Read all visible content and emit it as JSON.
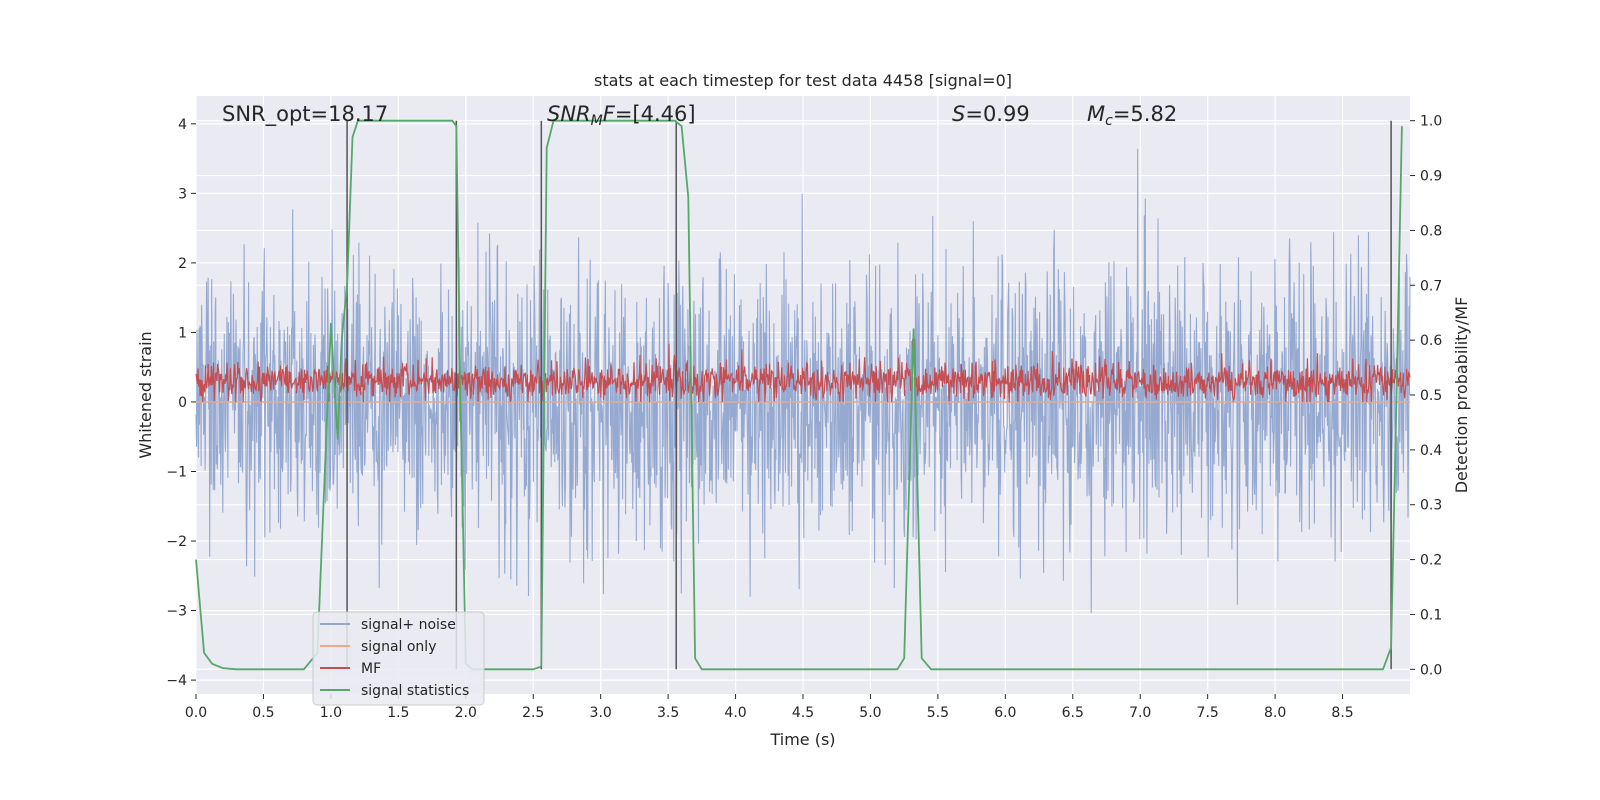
{
  "chart_data": {
    "type": "line",
    "title": "stats at each timestep for test data 4458 [signal=0]",
    "xlabel": "Time (s)",
    "ylabel": "Whitened strain",
    "ylabel_right": "Detection probability/MF",
    "xlim": [
      0,
      9.0
    ],
    "ylim": [
      -4.2,
      4.4
    ],
    "ylim_right": [
      -0.045,
      1.045
    ],
    "x_ticks": [
      0.0,
      0.5,
      1.0,
      1.5,
      2.0,
      2.5,
      3.0,
      3.5,
      4.0,
      4.5,
      5.0,
      5.5,
      6.0,
      6.5,
      7.0,
      7.5,
      8.0,
      8.5
    ],
    "x_tick_labels": [
      "0.0",
      "0.5",
      "1.0",
      "1.5",
      "2.0",
      "2.5",
      "3.0",
      "3.5",
      "4.0",
      "4.5",
      "5.0",
      "5.5",
      "6.0",
      "6.5",
      "7.0",
      "7.5",
      "8.0",
      "8.5"
    ],
    "y_ticks": [
      -4,
      -3,
      -2,
      -1,
      0,
      1,
      2,
      3,
      4
    ],
    "y_tick_labels": [
      "−4",
      "−3",
      "−2",
      "−1",
      "0",
      "1",
      "2",
      "3",
      "4"
    ],
    "y_right_ticks": [
      0.0,
      0.1,
      0.2,
      0.3,
      0.4,
      0.5,
      0.6,
      0.7,
      0.8,
      0.9,
      1.0
    ],
    "y_right_tick_labels": [
      "0.0",
      "0.1",
      "0.2",
      "0.3",
      "0.4",
      "0.5",
      "0.6",
      "0.7",
      "0.8",
      "0.9",
      "1.0"
    ],
    "grid": true,
    "legend_position": "lower-left",
    "annotations": {
      "snr_opt": "SNR_opt=18.17",
      "snr_mf_var": "SNR",
      "snr_mf_sub": "M",
      "snr_mf_var2": "F",
      "snr_mf_val": "=[4.46]",
      "s_var": "S",
      "s_val": "=0.99",
      "mc_var": "M",
      "mc_sub": "c",
      "mc_val": "=5.82"
    },
    "series": [
      {
        "name": "signal+ noise",
        "axis": "left",
        "color": "#91a7cf",
        "description_stats": {
          "mean": 0.0,
          "std": 1.0,
          "min": -3.8,
          "max": 4.0
        },
        "envelope_upper": [
          [
            0.0,
            2.9
          ],
          [
            0.5,
            2.5
          ],
          [
            1.0,
            2.6
          ],
          [
            1.5,
            3.0
          ],
          [
            2.0,
            2.6
          ],
          [
            2.5,
            2.4
          ],
          [
            3.0,
            2.5
          ],
          [
            3.5,
            2.6
          ],
          [
            4.0,
            2.7
          ],
          [
            4.5,
            2.7
          ],
          [
            5.0,
            2.6
          ],
          [
            5.5,
            2.5
          ],
          [
            6.0,
            2.6
          ],
          [
            6.5,
            2.6
          ],
          [
            7.0,
            2.6
          ],
          [
            7.5,
            2.8
          ],
          [
            8.0,
            2.6
          ],
          [
            8.5,
            2.7
          ],
          [
            9.0,
            2.5
          ]
        ],
        "envelope_lower": [
          [
            0.0,
            -2.5
          ],
          [
            0.5,
            -2.6
          ],
          [
            1.0,
            -2.6
          ],
          [
            1.5,
            -2.8
          ],
          [
            2.0,
            -2.6
          ],
          [
            2.5,
            -2.5
          ],
          [
            3.0,
            -2.6
          ],
          [
            3.5,
            -2.5
          ],
          [
            4.0,
            -2.6
          ],
          [
            4.5,
            -2.6
          ],
          [
            5.0,
            -2.5
          ],
          [
            5.5,
            -2.6
          ],
          [
            6.0,
            -2.5
          ],
          [
            6.5,
            -2.6
          ],
          [
            7.0,
            -2.7
          ],
          [
            7.5,
            -2.9
          ],
          [
            8.0,
            -2.6
          ],
          [
            8.5,
            -2.6
          ],
          [
            9.0,
            -2.5
          ]
        ]
      },
      {
        "name": "signal only",
        "axis": "left",
        "color": "#e8a98c",
        "x": [
          0.0,
          9.0
        ],
        "values": [
          0.0,
          0.0
        ]
      },
      {
        "name": "MF",
        "axis": "left",
        "color": "#c44e52",
        "description_stats": {
          "mean": 0.3,
          "band_low": 0.0,
          "band_high": 0.75,
          "peak_x": 5.32,
          "peak_y": 1.0
        }
      },
      {
        "name": "signal statistics",
        "axis": "right",
        "color": "#55a868",
        "x": [
          0.0,
          0.06,
          0.12,
          0.2,
          0.3,
          0.5,
          0.8,
          0.9,
          1.0,
          1.05,
          1.08,
          1.12,
          1.16,
          1.2,
          1.25,
          1.3,
          1.5,
          1.7,
          1.9,
          1.93,
          1.96,
          2.0,
          2.05,
          2.1,
          2.3,
          2.5,
          2.56,
          2.6,
          2.65,
          2.7,
          3.0,
          3.3,
          3.55,
          3.6,
          3.65,
          3.7,
          3.75,
          4.0,
          4.5,
          5.0,
          5.2,
          5.25,
          5.32,
          5.38,
          5.45,
          5.5,
          6.0,
          7.0,
          8.0,
          8.5,
          8.8,
          8.86,
          8.9,
          8.94
        ],
        "values": [
          0.2,
          0.03,
          0.01,
          0.002,
          0.0,
          0.0,
          0.0,
          0.03,
          0.63,
          0.42,
          0.6,
          0.7,
          0.97,
          1.0,
          1.0,
          1.0,
          1.0,
          1.0,
          1.0,
          0.99,
          0.5,
          0.01,
          0.0,
          0.0,
          0.0,
          0.0,
          0.005,
          0.95,
          1.0,
          1.0,
          1.0,
          1.0,
          1.0,
          0.99,
          0.86,
          0.02,
          0.0,
          0.0,
          0.0,
          0.0,
          0.0,
          0.02,
          0.62,
          0.02,
          0.0,
          0.0,
          0.0,
          0.0,
          0.0,
          0.0,
          0.0,
          0.04,
          0.5,
          0.99
        ]
      }
    ],
    "vertical_lines": {
      "color": "#555555",
      "x": [
        1.12,
        1.93,
        2.56,
        3.56,
        8.86
      ],
      "y_range": [
        0.0,
        1.0
      ]
    }
  }
}
